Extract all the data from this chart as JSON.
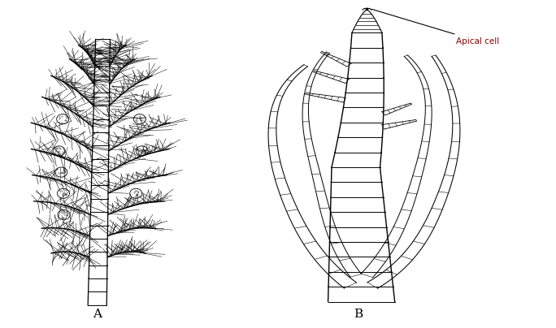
{
  "background_color": "#ffffff",
  "label_A": "A",
  "label_B": "B",
  "label_apical": "Apical cell",
  "fig_width": 6.84,
  "fig_height": 4.04,
  "dpi": 100
}
